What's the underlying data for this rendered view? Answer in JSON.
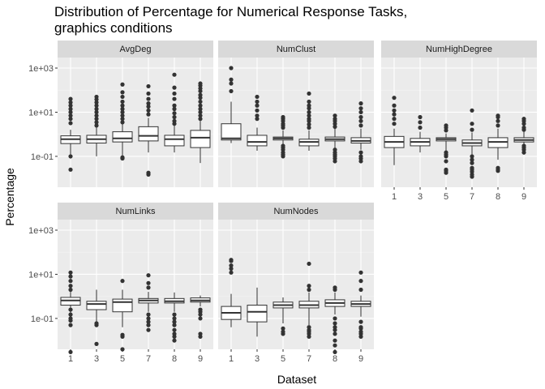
{
  "chart_data": {
    "type": "boxplot",
    "title_lines": [
      "Distribution of Percentage for Numerical Response Tasks,",
      "graphics conditions"
    ],
    "xlabel": "Dataset",
    "ylabel": "Percentage",
    "y_scale": "log10",
    "ylim": [
      0.004,
      3000
    ],
    "y_ticks": [
      {
        "value": 0.1,
        "label": "1e-01"
      },
      {
        "value": 10,
        "label": "1e+01"
      },
      {
        "value": 1000,
        "label": "1e+03"
      }
    ],
    "categories": [
      "1",
      "3",
      "5",
      "7",
      "8",
      "9"
    ],
    "colors": {
      "panel": "#ebebeb",
      "strip": "#d9d9d9",
      "grid_major": "#ffffff",
      "box_fill": "#ffffff",
      "box_line": "#333333",
      "point": "#333333"
    },
    "panels": [
      {
        "name": "AvgDeg",
        "boxes": [
          {
            "x": "1",
            "lower": 0.08,
            "q1": 0.38,
            "median": 0.6,
            "q3": 0.85,
            "upper": 1.6,
            "outliers": [
              0.025,
              0.1,
              3.2,
              5,
              7,
              10,
              14,
              20,
              28,
              40
            ]
          },
          {
            "x": "3",
            "lower": 0.1,
            "q1": 0.4,
            "median": 0.6,
            "q3": 0.9,
            "upper": 2.0,
            "outliers": [
              2.5,
              3.5,
              5,
              7,
              10,
              14,
              20,
              28,
              38,
              50
            ]
          },
          {
            "x": "5",
            "lower": 0.09,
            "q1": 0.45,
            "median": 0.65,
            "q3": 1.3,
            "upper": 3.0,
            "outliers": [
              0.08,
              0.09,
              3.5,
              5,
              7,
              10,
              14,
              20,
              30,
              50,
              80,
              180
            ]
          },
          {
            "x": "7",
            "lower": 0.15,
            "q1": 0.5,
            "median": 0.85,
            "q3": 2.2,
            "upper": 5.5,
            "outliers": [
              0.015,
              0.018,
              8,
              12,
              18,
              25,
              40,
              70,
              150
            ]
          },
          {
            "x": "8",
            "lower": 0.15,
            "q1": 0.3,
            "median": 0.6,
            "q3": 0.9,
            "upper": 2.5,
            "outliers": [
              3,
              4,
              6,
              9,
              14,
              20,
              40,
              70,
              130,
              500
            ]
          },
          {
            "x": "9",
            "lower": 0.05,
            "q1": 0.25,
            "median": 0.7,
            "q3": 1.5,
            "upper": 4.0,
            "outliers": [
              5,
              7,
              10,
              14,
              20,
              30,
              45,
              60,
              90,
              120,
              160,
              200
            ]
          }
        ]
      },
      {
        "name": "NumClust",
        "boxes": [
          {
            "x": "1",
            "lower": 0.4,
            "q1": 0.55,
            "median": 0.65,
            "q3": 3.0,
            "upper": 30,
            "outliers": [
              90,
              200,
              300,
              1000
            ]
          },
          {
            "x": "3",
            "lower": 0.18,
            "q1": 0.3,
            "median": 0.45,
            "q3": 0.9,
            "upper": 2.0,
            "outliers": [
              5,
              7,
              12,
              20,
              30,
              50
            ]
          },
          {
            "x": "5",
            "lower": 0.2,
            "q1": 0.55,
            "median": 0.65,
            "q3": 0.75,
            "upper": 1.5,
            "outliers": [
              0.1,
              0.12,
              0.15,
              0.2,
              0.25,
              0.3,
              2,
              2.5,
              3,
              4,
              5,
              6
            ]
          },
          {
            "x": "7",
            "lower": 0.18,
            "q1": 0.3,
            "median": 0.45,
            "q3": 0.6,
            "upper": 1.5,
            "outliers": [
              2,
              2.8,
              4,
              5,
              7,
              10,
              15,
              20,
              30,
              70
            ]
          },
          {
            "x": "8",
            "lower": 0.2,
            "q1": 0.5,
            "median": 0.6,
            "q3": 0.75,
            "upper": 1.8,
            "outliers": [
              0.06,
              0.08,
              0.1,
              0.12,
              0.15,
              0.2,
              2.2,
              3,
              4,
              5,
              7
            ]
          },
          {
            "x": "9",
            "lower": 0.2,
            "q1": 0.4,
            "median": 0.5,
            "q3": 0.7,
            "upper": 1.8,
            "outliers": [
              0.06,
              0.08,
              0.1,
              0.15,
              2.5,
              4,
              6,
              10,
              15,
              25
            ]
          }
        ]
      },
      {
        "name": "NumHighDegree",
        "boxes": [
          {
            "x": "1",
            "lower": 0.04,
            "q1": 0.25,
            "median": 0.45,
            "q3": 0.8,
            "upper": 1.8,
            "outliers": [
              3,
              5,
              8,
              12,
              20,
              45
            ]
          },
          {
            "x": "3",
            "lower": 0.15,
            "q1": 0.3,
            "median": 0.45,
            "q3": 0.65,
            "upper": 1.3,
            "outliers": [
              2,
              3.5,
              6
            ]
          },
          {
            "x": "5",
            "lower": 0.15,
            "q1": 0.5,
            "median": 0.6,
            "q3": 0.7,
            "upper": 1.1,
            "outliers": [
              0.018,
              0.022,
              0.025,
              0.06,
              0.1,
              0.12,
              0.15,
              1.5,
              2,
              2.5
            ]
          },
          {
            "x": "7",
            "lower": 0.08,
            "q1": 0.3,
            "median": 0.4,
            "q3": 0.55,
            "upper": 1.2,
            "outliers": [
              0.012,
              0.015,
              0.02,
              0.025,
              0.03,
              0.05,
              0.07,
              0.1,
              1.6,
              3,
              12
            ]
          },
          {
            "x": "8",
            "lower": 0.07,
            "q1": 0.25,
            "median": 0.45,
            "q3": 0.7,
            "upper": 1.8,
            "outliers": [
              0.022,
              0.025,
              0.03,
              2.5,
              4,
              6,
              7
            ]
          },
          {
            "x": "9",
            "lower": 0.12,
            "q1": 0.45,
            "median": 0.55,
            "q3": 0.7,
            "upper": 1.3,
            "outliers": [
              0.15,
              0.2,
              0.25,
              0.3,
              1.6,
              2,
              3,
              4,
              5
            ]
          }
        ]
      },
      {
        "name": "NumLinks",
        "boxes": [
          {
            "x": "1",
            "lower": 0.1,
            "q1": 0.4,
            "median": 0.65,
            "q3": 0.9,
            "upper": 1.6,
            "outliers": [
              0.003,
              0.05,
              0.08,
              0.1,
              0.15,
              0.25,
              2,
              3,
              5,
              8,
              12
            ]
          },
          {
            "x": "3",
            "lower": 0.06,
            "q1": 0.25,
            "median": 0.45,
            "q3": 0.6,
            "upper": 2.0,
            "outliers": [
              0.007,
              0.05,
              0.06
            ]
          },
          {
            "x": "5",
            "lower": 0.04,
            "q1": 0.2,
            "median": 0.55,
            "q3": 0.75,
            "upper": 2.0,
            "outliers": [
              0.004,
              0.015,
              0.018,
              5
            ]
          },
          {
            "x": "7",
            "lower": 0.2,
            "q1": 0.5,
            "median": 0.65,
            "q3": 0.8,
            "upper": 1.6,
            "outliers": [
              0.03,
              0.05,
              0.07,
              0.1,
              0.15,
              2.5,
              4,
              9
            ]
          },
          {
            "x": "8",
            "lower": 0.2,
            "q1": 0.5,
            "median": 0.6,
            "q3": 0.8,
            "upper": 1.5,
            "outliers": [
              0.01,
              0.015,
              0.02,
              0.03,
              0.05,
              0.07,
              0.1,
              0.15
            ]
          },
          {
            "x": "9",
            "lower": 0.35,
            "q1": 0.55,
            "median": 0.65,
            "q3": 0.85,
            "upper": 1.1,
            "outliers": [
              0.015,
              0.02,
              0.1,
              0.15,
              0.2,
              0.25
            ]
          }
        ]
      },
      {
        "name": "NumNodes",
        "boxes": [
          {
            "x": "1",
            "lower": 0.04,
            "q1": 0.09,
            "median": 0.18,
            "q3": 0.35,
            "upper": 1.3,
            "outliers": [
              12,
              18,
              25,
              40,
              45
            ]
          },
          {
            "x": "3",
            "lower": 0.015,
            "q1": 0.07,
            "median": 0.2,
            "q3": 0.4,
            "upper": 2.5,
            "outliers": []
          },
          {
            "x": "5",
            "lower": 0.06,
            "q1": 0.3,
            "median": 0.4,
            "q3": 0.55,
            "upper": 0.9,
            "outliers": [
              0.02,
              0.025,
              0.035
            ]
          },
          {
            "x": "7",
            "lower": 0.05,
            "q1": 0.3,
            "median": 0.4,
            "q3": 0.6,
            "upper": 1.5,
            "outliers": [
              0.015,
              0.02,
              0.025,
              0.03,
              0.04,
              2,
              3,
              30
            ]
          },
          {
            "x": "8",
            "lower": 0.15,
            "q1": 0.35,
            "median": 0.5,
            "q3": 0.7,
            "upper": 1.5,
            "outliers": [
              0.003,
              0.006,
              0.01,
              0.02,
              0.03,
              0.04,
              0.06,
              0.1,
              2,
              2.5
            ]
          },
          {
            "x": "9",
            "lower": 0.12,
            "q1": 0.35,
            "median": 0.45,
            "q3": 0.6,
            "upper": 1.1,
            "outliers": [
              0.015,
              0.02,
              0.025,
              0.035,
              0.04,
              0.07,
              2,
              5,
              12
            ]
          }
        ]
      }
    ]
  }
}
